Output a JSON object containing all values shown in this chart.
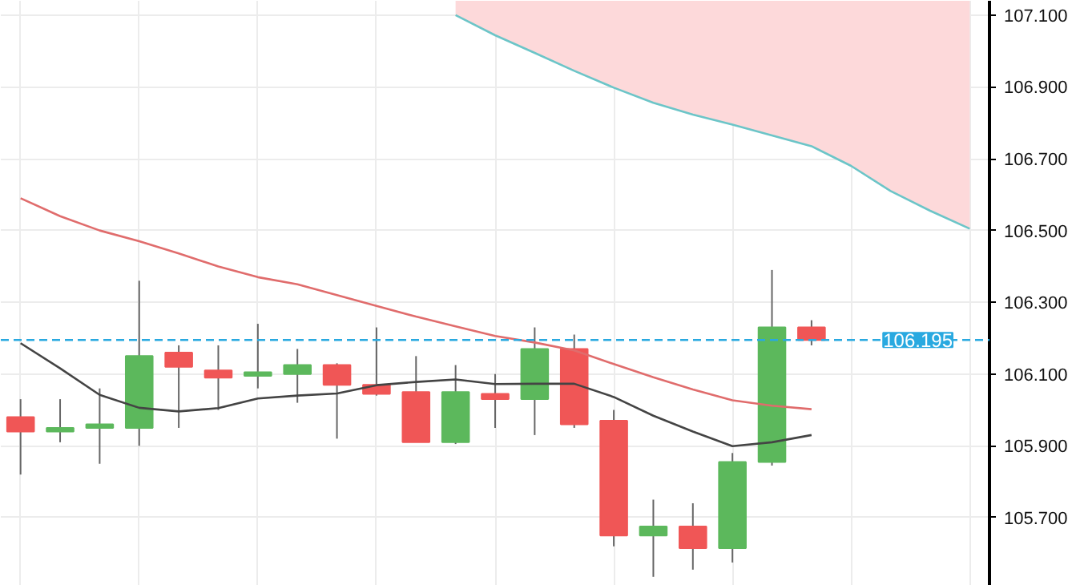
{
  "chart_data": {
    "type": "candlestick",
    "categories": [
      null,
      null,
      null,
      null,
      null,
      null,
      null,
      null,
      null,
      null,
      null,
      null,
      null,
      null,
      null,
      null,
      null,
      null,
      null,
      null,
      null,
      null,
      null,
      null,
      null
    ],
    "ohlc": [
      [
        105.98,
        106.03,
        105.82,
        105.94
      ],
      [
        105.94,
        106.03,
        105.91,
        105.95
      ],
      [
        105.95,
        106.06,
        105.85,
        105.96
      ],
      [
        105.95,
        106.36,
        105.9,
        106.15
      ],
      [
        106.16,
        106.18,
        105.95,
        106.12
      ],
      [
        106.11,
        106.18,
        106.0,
        106.09
      ],
      [
        106.095,
        106.24,
        106.06,
        106.105
      ],
      [
        106.1,
        106.17,
        106.02,
        106.125
      ],
      [
        106.125,
        106.13,
        105.92,
        106.07
      ],
      [
        106.07,
        106.23,
        106.04,
        106.045
      ],
      [
        106.05,
        106.15,
        105.91,
        105.91
      ],
      [
        105.91,
        106.125,
        105.905,
        106.05
      ],
      [
        106.045,
        106.1,
        105.95,
        106.03
      ],
      [
        106.03,
        106.23,
        105.93,
        106.17
      ],
      [
        106.17,
        106.21,
        105.95,
        105.96
      ],
      [
        105.97,
        106.0,
        105.62,
        105.65
      ],
      [
        105.65,
        105.75,
        105.535,
        105.675
      ],
      [
        105.675,
        105.74,
        105.555,
        105.615
      ],
      [
        105.615,
        105.88,
        105.575,
        105.855
      ],
      [
        105.855,
        106.39,
        105.845,
        106.23
      ],
      [
        106.23,
        106.25,
        106.18,
        106.195
      ],
      null,
      null,
      null,
      null
    ],
    "series": [
      {
        "type": "line",
        "color": "#444444",
        "values": [
          106.186,
          106.116,
          106.042,
          106.006,
          105.996,
          106.005,
          106.032,
          106.04,
          106.046,
          106.069,
          106.078,
          106.085,
          106.072,
          106.073,
          106.073,
          106.036,
          105.984,
          105.94,
          105.899,
          105.91,
          105.93,
          null,
          null,
          null,
          null
        ]
      },
      {
        "type": "line",
        "color": "#e06c6c",
        "values": [
          106.59,
          106.54,
          106.5,
          106.47,
          106.436,
          106.4,
          106.37,
          106.35,
          106.32,
          106.29,
          106.26,
          106.233,
          106.206,
          106.188,
          106.166,
          106.128,
          106.091,
          106.057,
          106.027,
          106.012,
          106.002,
          null,
          null,
          null,
          null
        ]
      },
      {
        "type": "line",
        "color": "#6cc5c8",
        "values": [
          null,
          null,
          null,
          null,
          null,
          null,
          null,
          null,
          null,
          null,
          null,
          107.1,
          107.044,
          106.995,
          106.945,
          106.898,
          106.856,
          106.823,
          106.795,
          106.765,
          106.735,
          106.68,
          106.61,
          106.555,
          106.505
        ],
        "lower": [
          null,
          null,
          null,
          null,
          null,
          null,
          null,
          null,
          null,
          null,
          null,
          107.1,
          107.044,
          106.995,
          106.945,
          106.898,
          106.856,
          106.823,
          106.795,
          106.765,
          106.735,
          106.68,
          106.61,
          106.555,
          106.505
        ],
        "upper": [
          null,
          null,
          null,
          null,
          null,
          null,
          null,
          null,
          null,
          null,
          null,
          107.14,
          107.14,
          107.14,
          107.14,
          107.14,
          107.14,
          107.14,
          107.14,
          107.14,
          107.14,
          107.14,
          107.14,
          107.14,
          107.14
        ]
      }
    ],
    "ylim": [
      105.51,
      107.14
    ],
    "yticks": [
      {
        "value": 105.7,
        "label": "105.700"
      },
      {
        "value": 105.9,
        "label": "105.900"
      },
      {
        "value": 106.1,
        "label": "106.100"
      },
      {
        "value": 106.3,
        "label": "106.300"
      },
      {
        "value": 106.5,
        "label": "106.500"
      },
      {
        "value": 106.7,
        "label": "106.700"
      },
      {
        "value": 106.9,
        "label": "106.900"
      },
      {
        "value": 107.1,
        "label": "107.100"
      }
    ],
    "tick_labels": "y",
    "grid": true,
    "ref_lines": [
      {
        "axis": "y",
        "value": 106.195,
        "label": "106.195",
        "color": "#29a9e0",
        "line_style": "dashed"
      }
    ]
  }
}
